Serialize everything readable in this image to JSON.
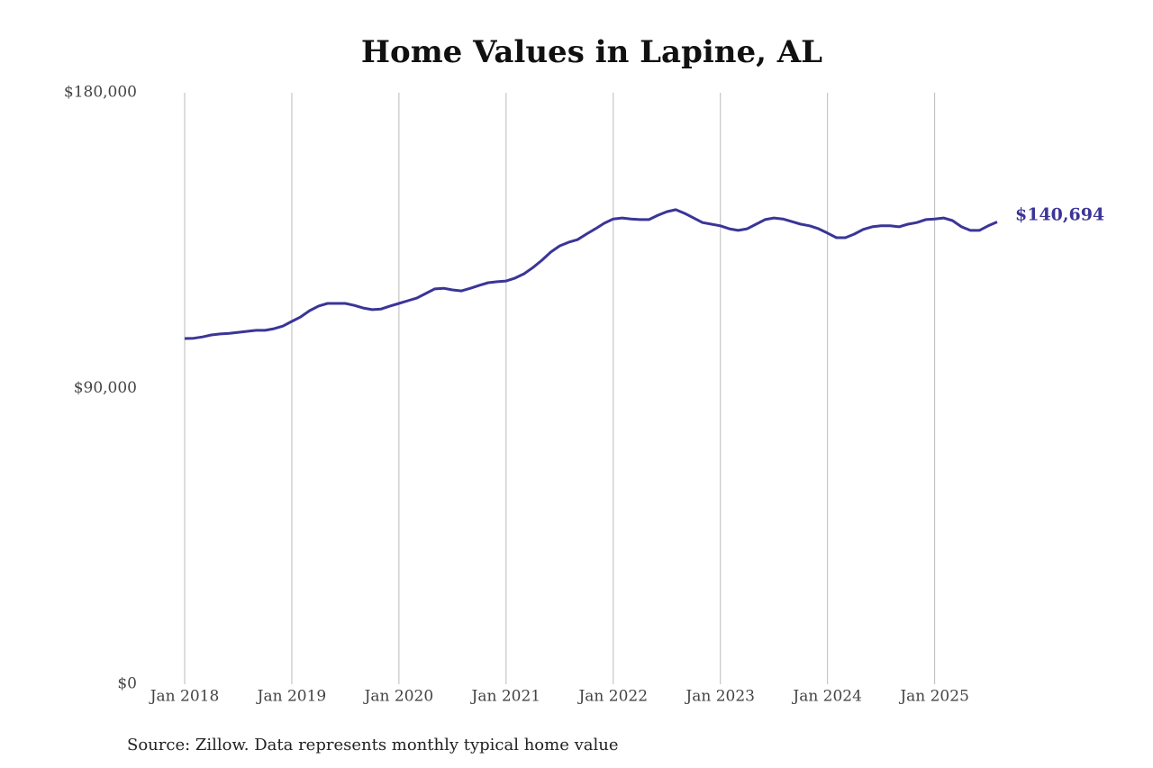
{
  "chart_data": {
    "type": "line",
    "title": "Home Values in Lapine, AL",
    "caption": "Source: Zillow. Data represents monthly typical home value",
    "x": [
      "2018-01",
      "2018-02",
      "2018-03",
      "2018-04",
      "2018-05",
      "2018-06",
      "2018-07",
      "2018-08",
      "2018-09",
      "2018-10",
      "2018-11",
      "2018-12",
      "2019-01",
      "2019-02",
      "2019-03",
      "2019-04",
      "2019-05",
      "2019-06",
      "2019-07",
      "2019-08",
      "2019-09",
      "2019-10",
      "2019-11",
      "2019-12",
      "2020-01",
      "2020-02",
      "2020-03",
      "2020-04",
      "2020-05",
      "2020-06",
      "2020-07",
      "2020-08",
      "2020-09",
      "2020-10",
      "2020-11",
      "2020-12",
      "2021-01",
      "2021-02",
      "2021-03",
      "2021-04",
      "2021-05",
      "2021-06",
      "2021-07",
      "2021-08",
      "2021-09",
      "2021-10",
      "2021-11",
      "2021-12",
      "2022-01",
      "2022-02",
      "2022-03",
      "2022-04",
      "2022-05",
      "2022-06",
      "2022-07",
      "2022-08",
      "2022-09",
      "2022-10",
      "2022-11",
      "2022-12",
      "2023-01",
      "2023-02",
      "2023-03",
      "2023-04",
      "2023-05",
      "2023-06",
      "2023-07",
      "2023-08",
      "2023-09",
      "2023-10",
      "2023-11",
      "2023-12",
      "2024-01",
      "2024-02",
      "2024-03",
      "2024-04",
      "2024-05",
      "2024-06",
      "2024-07",
      "2024-08",
      "2024-09",
      "2024-10",
      "2024-11",
      "2024-12",
      "2025-01",
      "2025-02",
      "2025-03",
      "2025-04",
      "2025-05",
      "2025-06",
      "2025-07",
      "2025-08"
    ],
    "values": [
      105200,
      105300,
      105700,
      106300,
      106600,
      106800,
      107100,
      107400,
      107700,
      107700,
      108200,
      109000,
      110400,
      111800,
      113700,
      115100,
      115900,
      115900,
      115900,
      115300,
      114500,
      114000,
      114200,
      115100,
      115900,
      116700,
      117500,
      118900,
      120300,
      120500,
      120000,
      119700,
      120500,
      121400,
      122200,
      122500,
      122700,
      123600,
      124900,
      126800,
      129000,
      131500,
      133400,
      134500,
      135300,
      137000,
      138600,
      140300,
      141600,
      141900,
      141600,
      141400,
      141400,
      142700,
      143800,
      144400,
      143300,
      141900,
      140500,
      140000,
      139500,
      138600,
      138100,
      138600,
      140000,
      141400,
      141900,
      141600,
      140800,
      140000,
      139500,
      138600,
      137300,
      135900,
      135900,
      137000,
      138400,
      139200,
      139500,
      139500,
      139200,
      140000,
      140500,
      141400,
      141600,
      141900,
      141100,
      139200,
      138100,
      138100,
      139500,
      140694
    ],
    "value_labels": [
      null,
      null,
      null,
      null,
      null,
      null,
      null,
      null,
      null,
      null,
      null,
      null,
      null,
      null,
      null,
      null,
      null,
      null,
      null,
      null,
      null,
      null,
      null,
      null,
      null,
      null,
      null,
      null,
      null,
      null,
      null,
      null,
      null,
      null,
      null,
      null,
      null,
      null,
      null,
      null,
      null,
      null,
      null,
      null,
      null,
      null,
      null,
      null,
      null,
      null,
      null,
      null,
      null,
      null,
      null,
      null,
      null,
      null,
      null,
      null,
      null,
      null,
      null,
      null,
      null,
      null,
      null,
      null,
      null,
      null,
      null,
      null,
      null,
      null,
      null,
      null,
      null,
      null,
      null,
      null,
      null,
      null,
      null,
      null,
      null,
      null,
      null,
      null,
      null,
      null,
      null,
      "$140,694"
    ],
    "color": "#3a3597",
    "xlim": [
      "2018-01",
      "2025-08"
    ],
    "xticks": [
      {
        "value": "2018-01",
        "label": "Jan 2018"
      },
      {
        "value": "2019-01",
        "label": "Jan 2019"
      },
      {
        "value": "2020-01",
        "label": "Jan 2020"
      },
      {
        "value": "2021-01",
        "label": "Jan 2021"
      },
      {
        "value": "2022-01",
        "label": "Jan 2022"
      },
      {
        "value": "2023-01",
        "label": "Jan 2023"
      },
      {
        "value": "2024-01",
        "label": "Jan 2024"
      },
      {
        "value": "2025-01",
        "label": "Jan 2025"
      }
    ],
    "ylim": [
      0,
      180000
    ],
    "yticks": [
      {
        "value": 0,
        "label": "$0"
      },
      {
        "value": 90000,
        "label": "$90,000"
      },
      {
        "value": 180000,
        "label": "$180,000"
      }
    ],
    "grid": "x"
  }
}
